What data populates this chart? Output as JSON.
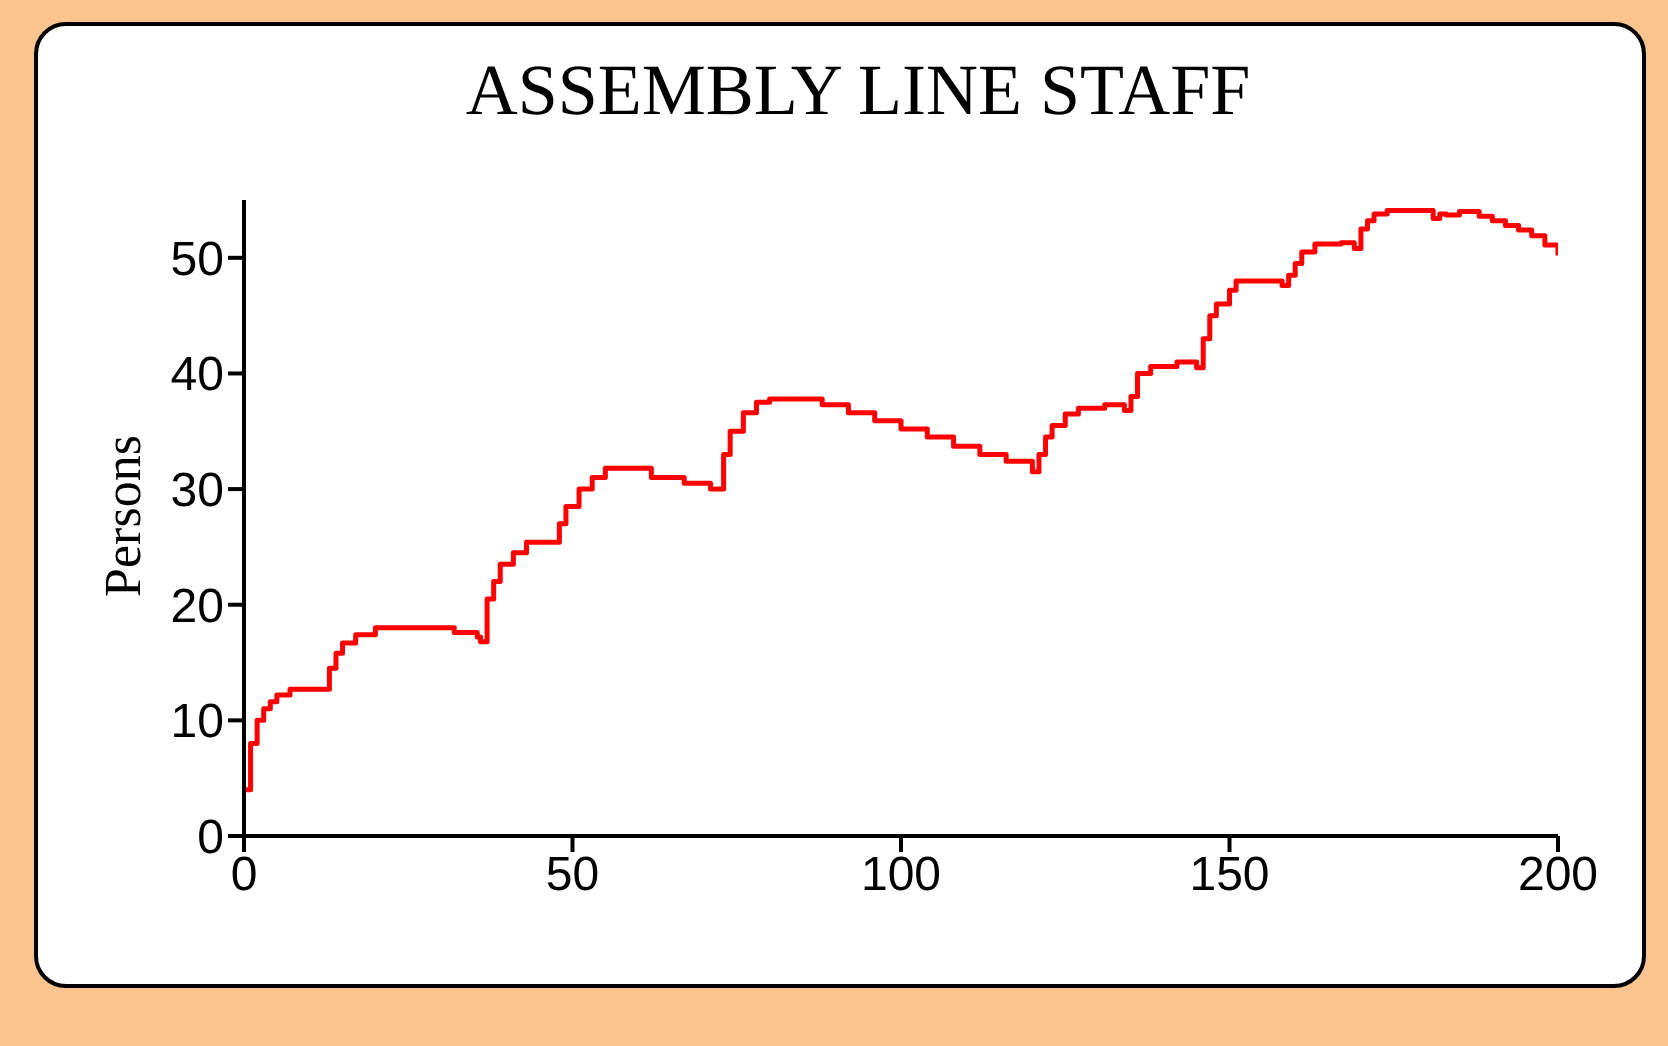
{
  "chart_data": {
    "type": "step",
    "title": "ASSEMBLY LINE STAFF",
    "ylabel": "Persons",
    "x": [
      0,
      1,
      2,
      3,
      4,
      5,
      7,
      12,
      13,
      14,
      15,
      17,
      20,
      26,
      32,
      35.5,
      36,
      37,
      38,
      39,
      41,
      43,
      47,
      48,
      49,
      51,
      53,
      55,
      60,
      62,
      67,
      71,
      72,
      73,
      74,
      76,
      78,
      80,
      84,
      88,
      92,
      96,
      100,
      104,
      108,
      112,
      116,
      120,
      121,
      122,
      123,
      125,
      127,
      131,
      134,
      135,
      136,
      138,
      142,
      145,
      146,
      147,
      148,
      150,
      151,
      155,
      158,
      159,
      160,
      161,
      163,
      167,
      169,
      170,
      171,
      172,
      174,
      180,
      181,
      182,
      183,
      185,
      188,
      190,
      192,
      194,
      196,
      198,
      200
    ],
    "series": [
      {
        "color": "#ff0000",
        "values": [
          4,
          8,
          10,
          11,
          11.6,
          12.2,
          12.7,
          12.7,
          14.5,
          15.8,
          16.7,
          17.4,
          18,
          18,
          17.6,
          17.2,
          16.8,
          20.5,
          22,
          23.5,
          24.5,
          25.4,
          25.4,
          27,
          28.5,
          30,
          31,
          31.8,
          31.8,
          31,
          30.5,
          30,
          30,
          33,
          35,
          36.6,
          37.5,
          37.8,
          37.8,
          37.3,
          36.6,
          35.9,
          35.2,
          34.5,
          33.7,
          33,
          32.4,
          31.5,
          33,
          34.5,
          35.5,
          36.5,
          37,
          37.3,
          36.8,
          38,
          40,
          40.6,
          41,
          40.5,
          43,
          45,
          46,
          47.2,
          48,
          48,
          47.6,
          48.5,
          49.5,
          50.5,
          51.2,
          51.3,
          50.8,
          52.5,
          53.2,
          53.8,
          54.1,
          54.1,
          53.4,
          53.8,
          53.7,
          54,
          53.6,
          53.2,
          52.8,
          52.4,
          51.9,
          51.1,
          50.2
        ]
      }
    ],
    "xlim": [
      0,
      200
    ],
    "xticks": [
      0,
      50,
      100,
      150,
      200
    ],
    "ylim": [
      0,
      55
    ],
    "yticks": [
      0,
      10,
      20,
      30,
      40,
      50
    ],
    "grid": false,
    "marker": "none",
    "line_style": "solid"
  }
}
